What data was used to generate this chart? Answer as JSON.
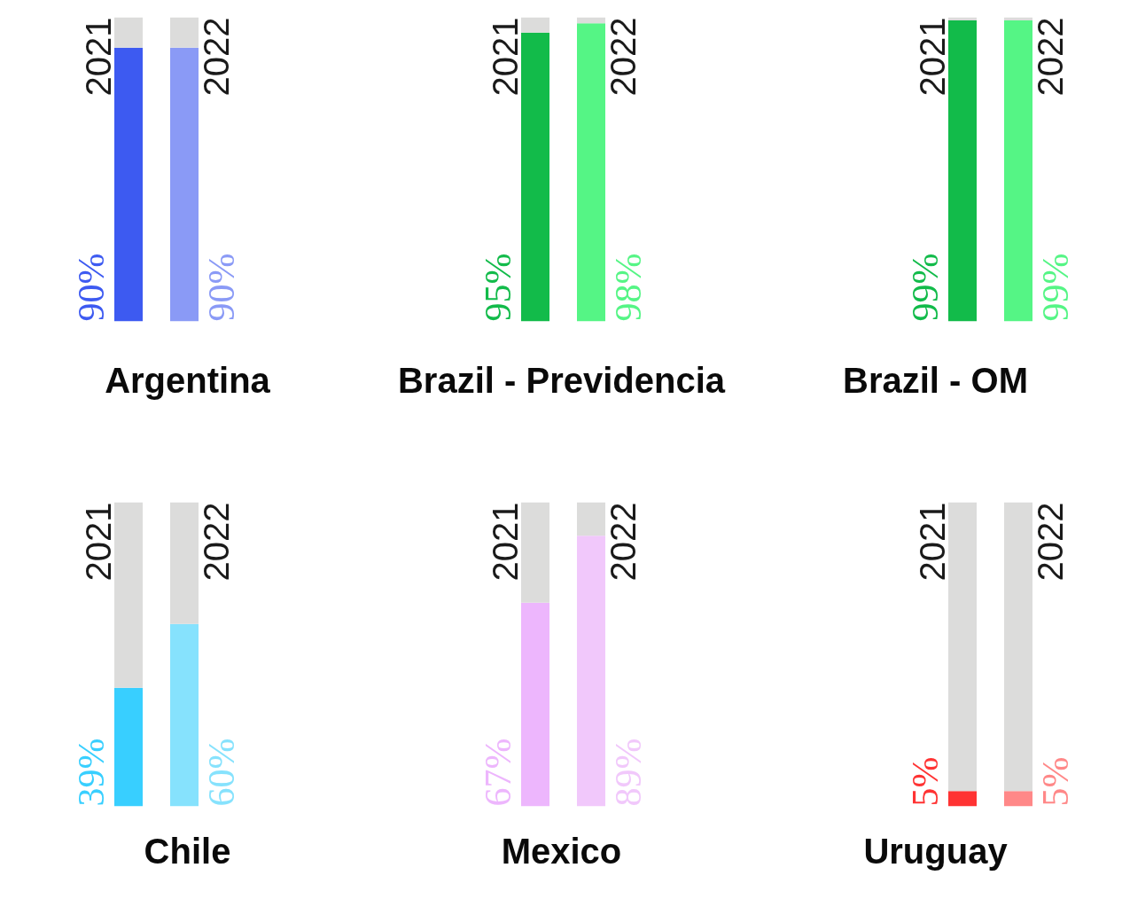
{
  "chart_data": [
    {
      "type": "bar",
      "title": "Argentina",
      "categories": [
        "2021",
        "2022"
      ],
      "stacked": true,
      "ylim": [
        0,
        100
      ],
      "tick_labels": "x",
      "series": [
        {
          "colors": [
            "#3d5af1",
            "#8a9af6"
          ],
          "values": [
            90,
            90
          ],
          "value_labels": [
            "90%",
            "90%"
          ]
        },
        {
          "colors": [
            "#dcdcdb",
            "#dcdcdb"
          ],
          "values": [
            10,
            10
          ]
        }
      ]
    },
    {
      "type": "bar",
      "title": "Brazil - Previdencia",
      "categories": [
        "2021",
        "2022"
      ],
      "stacked": true,
      "ylim": [
        0,
        100
      ],
      "tick_labels": "x",
      "series": [
        {
          "colors": [
            "#12bb4a",
            "#55f585"
          ],
          "values": [
            95,
            98
          ],
          "value_labels": [
            "95%",
            "98%"
          ]
        },
        {
          "colors": [
            "#dcdcdb",
            "#dcdcdb"
          ],
          "values": [
            5,
            2
          ]
        }
      ]
    },
    {
      "type": "bar",
      "title": "Brazil - OM",
      "categories": [
        "2021",
        "2022"
      ],
      "stacked": true,
      "ylim": [
        0,
        100
      ],
      "tick_labels": "x",
      "series": [
        {
          "colors": [
            "#12bb4a",
            "#55f585"
          ],
          "values": [
            99,
            99
          ],
          "value_labels": [
            "99%",
            "99%"
          ]
        },
        {
          "colors": [
            "#dcdcdb",
            "#dcdcdb"
          ],
          "values": [
            1,
            1
          ]
        }
      ]
    },
    {
      "type": "bar",
      "title": "Chile",
      "categories": [
        "2021",
        "2022"
      ],
      "stacked": true,
      "ylim": [
        0,
        100
      ],
      "tick_labels": "x",
      "series": [
        {
          "colors": [
            "#38cfff",
            "#86e2fd"
          ],
          "values": [
            39,
            60
          ],
          "value_labels": [
            "39%",
            "60%"
          ]
        },
        {
          "colors": [
            "#dcdcdb",
            "#dcdcdb"
          ],
          "values": [
            61,
            40
          ]
        }
      ]
    },
    {
      "type": "bar",
      "title": "Mexico",
      "categories": [
        "2021",
        "2022"
      ],
      "stacked": true,
      "ylim": [
        0,
        100
      ],
      "tick_labels": "x",
      "series": [
        {
          "colors": [
            "#edb6fd",
            "#f1c8fb"
          ],
          "values": [
            67,
            89
          ],
          "value_labels": [
            "67%",
            "89%"
          ]
        },
        {
          "colors": [
            "#dcdcdb",
            "#dcdcdb"
          ],
          "values": [
            33,
            11
          ]
        }
      ]
    },
    {
      "type": "bar",
      "title": "Uruguay",
      "categories": [
        "2021",
        "2022"
      ],
      "stacked": true,
      "ylim": [
        0,
        100
      ],
      "tick_labels": "x",
      "series": [
        {
          "colors": [
            "#ff3333",
            "#ff8888"
          ],
          "values": [
            5,
            5
          ],
          "value_labels": [
            "5%",
            "5%"
          ]
        },
        {
          "colors": [
            "#dcdcdb",
            "#dcdcdb"
          ],
          "values": [
            95,
            95
          ]
        }
      ]
    }
  ]
}
